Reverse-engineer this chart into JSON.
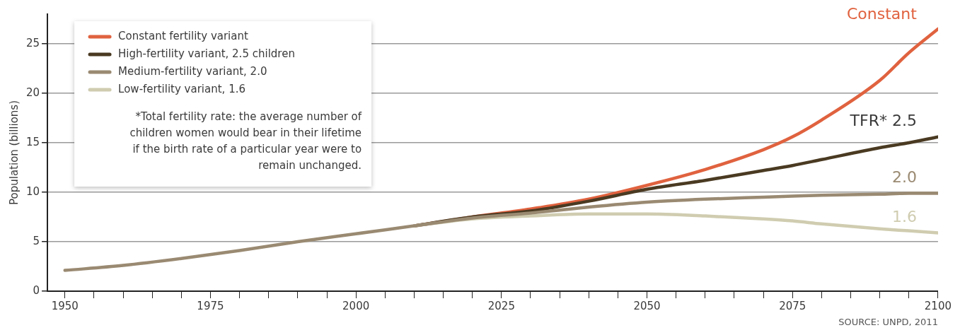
{
  "chart_data": {
    "type": "line",
    "ylabel": "Population (billions)",
    "x": [
      1950,
      1960,
      1970,
      1980,
      1990,
      2000,
      2010,
      2020,
      2030,
      2040,
      2050,
      2060,
      2070,
      2075,
      2080,
      2090,
      2095,
      2100
    ],
    "series": [
      {
        "name": "Constant fertility variant",
        "color": "#e0623f",
        "values": [
          null,
          null,
          null,
          null,
          null,
          null,
          6.6,
          7.5,
          8.3,
          9.3,
          10.7,
          12.3,
          14.3,
          15.6,
          17.3,
          21.3,
          24.1,
          26.5
        ]
      },
      {
        "name": "High-fertility variant, 2.5 children",
        "color": "#4a3a22",
        "values": [
          null,
          null,
          null,
          null,
          null,
          null,
          6.6,
          7.5,
          8.1,
          9.1,
          10.3,
          11.2,
          12.2,
          12.7,
          13.3,
          14.5,
          15.0,
          15.6
        ]
      },
      {
        "name": "Medium-fertility variant, 2.0",
        "color": "#9a8a72",
        "values": [
          2.1,
          2.6,
          3.3,
          4.1,
          5.0,
          5.8,
          6.6,
          7.4,
          7.9,
          8.5,
          9.0,
          9.3,
          9.5,
          9.6,
          9.7,
          9.8,
          9.9,
          9.9
        ]
      },
      {
        "name": "Low-fertility variant, 1.6",
        "color": "#cfccb0",
        "values": [
          null,
          null,
          null,
          null,
          null,
          null,
          6.6,
          7.3,
          7.6,
          7.8,
          7.8,
          7.6,
          7.3,
          7.1,
          6.8,
          6.3,
          6.1,
          5.9
        ]
      }
    ],
    "xlim": [
      1947,
      2100
    ],
    "xticks": [
      1950,
      {
        "value": 1955,
        "label": null
      },
      {
        "value": 1960,
        "label": null
      },
      {
        "value": 1965,
        "label": null
      },
      {
        "value": 1970,
        "label": null
      },
      1975,
      {
        "value": 1980,
        "label": null
      },
      {
        "value": 1985,
        "label": null
      },
      {
        "value": 1990,
        "label": null
      },
      {
        "value": 1995,
        "label": null
      },
      2000,
      {
        "value": 2005,
        "label": null
      },
      {
        "value": 2010,
        "label": null
      },
      {
        "value": 2015,
        "label": null
      },
      {
        "value": 2020,
        "label": null
      },
      2025,
      {
        "value": 2030,
        "label": null
      },
      {
        "value": 2035,
        "label": null
      },
      {
        "value": 2040,
        "label": null
      },
      {
        "value": 2045,
        "label": null
      },
      2050,
      {
        "value": 2055,
        "label": null
      },
      {
        "value": 2060,
        "label": null
      },
      {
        "value": 2065,
        "label": null
      },
      {
        "value": 2070,
        "label": null
      },
      2075,
      {
        "value": 2080,
        "label": null
      },
      {
        "value": 2085,
        "label": null
      },
      {
        "value": 2090,
        "label": null
      },
      {
        "value": 2095,
        "label": null
      },
      2100
    ],
    "ylim": [
      0,
      28
    ],
    "yticks": [
      0,
      5,
      10,
      15,
      20,
      25
    ],
    "grid": "y",
    "legend": "top left",
    "marker": "none",
    "line_style": "solid",
    "annotations": [
      "Constant",
      "TFR* 2.5",
      "2.0",
      "1.6",
      "*Total fertility rate: the average number of children women would bear in their lifetime if the birth rate of a particular year were to remain unchanged.",
      "SOURCE: UNPD, 2011"
    ]
  }
}
